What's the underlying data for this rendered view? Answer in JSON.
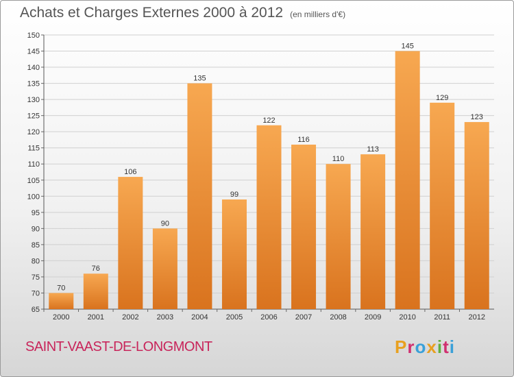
{
  "header": {
    "title": "Achats et Charges Externes 2000 à 2012",
    "unit": "(en milliers d'€)"
  },
  "footer": {
    "commune": "SAINT-VAAST-DE-LONGMONT",
    "logo": "Proxiti",
    "logo_colors": [
      "#e8a020",
      "#d03070",
      "#3aa0d8",
      "#e8a020",
      "#60b040",
      "#d03070",
      "#3aa0d8"
    ]
  },
  "colors": {
    "bar_light": "#f7a851",
    "bar_dark": "#d9731e",
    "grid": "#d0d0d0",
    "title": "#555555",
    "commune": "#c8245a"
  },
  "chart_data": {
    "type": "bar",
    "title": "Achats et Charges Externes 2000 à 2012",
    "subtitle": "(en milliers d'€)",
    "categories": [
      "2000",
      "2001",
      "2002",
      "2003",
      "2004",
      "2005",
      "2006",
      "2007",
      "2008",
      "2009",
      "2010",
      "2011",
      "2012"
    ],
    "values": [
      70,
      76,
      106,
      90,
      135,
      99,
      122,
      116,
      110,
      113,
      145,
      129,
      123
    ],
    "ylim": [
      65,
      150
    ],
    "yticks": [
      65,
      70,
      75,
      80,
      85,
      90,
      95,
      100,
      105,
      110,
      115,
      120,
      125,
      130,
      135,
      140,
      145,
      150
    ],
    "grid": true,
    "legend": "none",
    "xlabel": "",
    "ylabel": ""
  }
}
